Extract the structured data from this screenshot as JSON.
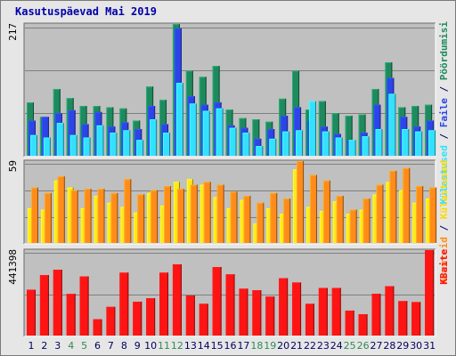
{
  "title": "Kasutuspäevad Mai 2019",
  "colors": {
    "panel": "#c0c0c0",
    "grid": "#7f7f7f",
    "pages": "#1e8a5e",
    "files": "#2c44e8",
    "visits": "#33e1ff",
    "hosts": "#ff8c1a",
    "kbytes": "#ff1414",
    "weekend": "#2e8b57",
    "weekday": "#000060",
    "scale": "#000000"
  },
  "chart_data": [
    {
      "type": "bar",
      "categories": [
        "1",
        "2",
        "3",
        "4",
        "5",
        "6",
        "7",
        "8",
        "9",
        "10",
        "11",
        "12",
        "13",
        "14",
        "15",
        "16",
        "17",
        "18",
        "19",
        "20",
        "21",
        "22",
        "23",
        "24",
        "25",
        "26",
        "27",
        "28",
        "29",
        "30",
        "31"
      ],
      "weekend_days": [
        "4",
        "5",
        "11",
        "12",
        "18",
        "19",
        "25",
        "26"
      ],
      "ytick": "217",
      "ylim": [
        0,
        217
      ],
      "legend": [
        {
          "key": "visits",
          "label": "Külastused"
        },
        {
          "key": "files",
          "label": "Faile"
        },
        {
          "key": "pages",
          "label": "Pöördumisi"
        }
      ],
      "legend_sep": " / ",
      "series": [
        {
          "key": "pages",
          "values": [
            88,
            64,
            110,
            95,
            82,
            82,
            80,
            78,
            58,
            114,
            92,
            217,
            140,
            130,
            148,
            76,
            62,
            60,
            56,
            94,
            140,
            76,
            90,
            70,
            66,
            68,
            110,
            154,
            80,
            82,
            84
          ]
        },
        {
          "key": "files",
          "values": [
            58,
            64,
            70,
            75,
            52,
            72,
            48,
            55,
            44,
            82,
            52,
            210,
            98,
            84,
            88,
            50,
            46,
            28,
            44,
            66,
            80,
            58,
            48,
            36,
            26,
            38,
            84,
            128,
            64,
            48,
            58
          ]
        },
        {
          "key": "visits",
          "values": [
            34,
            30,
            54,
            34,
            30,
            50,
            38,
            42,
            26,
            60,
            38,
            120,
            86,
            74,
            78,
            46,
            38,
            16,
            28,
            40,
            42,
            90,
            40,
            30,
            26,
            32,
            44,
            102,
            44,
            40,
            42
          ]
        }
      ]
    },
    {
      "type": "bar",
      "categories": [
        "1",
        "2",
        "3",
        "4",
        "5",
        "6",
        "7",
        "8",
        "9",
        "10",
        "11",
        "12",
        "13",
        "14",
        "15",
        "16",
        "17",
        "18",
        "19",
        "20",
        "21",
        "22",
        "23",
        "24",
        "25",
        "26",
        "27",
        "28",
        "29",
        "30",
        "31"
      ],
      "ytick": "59",
      "ylim": [
        0,
        59
      ],
      "legend": [
        {
          "key": "hosts",
          "label": "Arvuteid"
        },
        {
          "key": "kb",
          "label": "Külastused"
        }
      ],
      "legend_sep": " / ",
      "series": [
        {
          "key": "visits_yellow",
          "color": "#ffe81a",
          "values": [
            25,
            24,
            45,
            40,
            25,
            34,
            29,
            26,
            22,
            36,
            27,
            44,
            46,
            42,
            33,
            25,
            31,
            14,
            25,
            21,
            53,
            26,
            23,
            30,
            21,
            24,
            35,
            44,
            38,
            29,
            32
          ]
        },
        {
          "key": "hosts",
          "values": [
            40,
            36,
            48,
            38,
            39,
            39,
            36,
            46,
            35,
            38,
            41,
            39,
            42,
            44,
            42,
            37,
            34,
            29,
            36,
            32,
            59,
            49,
            45,
            34,
            24,
            32,
            42,
            52,
            54,
            41,
            40
          ]
        }
      ]
    },
    {
      "type": "bar",
      "categories": [
        "1",
        "2",
        "3",
        "4",
        "5",
        "6",
        "7",
        "8",
        "9",
        "10",
        "11",
        "12",
        "13",
        "14",
        "15",
        "16",
        "17",
        "18",
        "19",
        "20",
        "21",
        "22",
        "23",
        "24",
        "25",
        "26",
        "27",
        "28",
        "29",
        "30",
        "31"
      ],
      "ytick": "441398",
      "ylim": [
        0,
        441398
      ],
      "legend": [
        {
          "key": "kbytes",
          "label": "KBaite"
        }
      ],
      "series": [
        {
          "key": "kbytes",
          "values": [
            237000,
            312000,
            340000,
            215000,
            305000,
            84000,
            148000,
            325000,
            175000,
            193000,
            325000,
            368000,
            207000,
            164000,
            354000,
            316000,
            242000,
            234000,
            201000,
            296000,
            274000,
            164000,
            246000,
            246000,
            129000,
            110000,
            216000,
            255000,
            178000,
            173000,
            441398
          ]
        }
      ]
    }
  ]
}
